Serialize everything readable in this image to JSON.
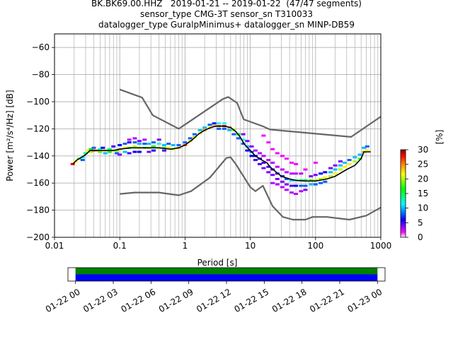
{
  "title_lines": [
    "BK.BK69.00.HHZ   2019-01-21 -- 2019-01-22  (47/47 segments)",
    "sensor_type CMG-3T sensor_sn T310033",
    "datalogger_type GuralpMinimus+ datalogger_sn MINP-DB59"
  ],
  "chart_data": [
    {
      "type": "heatmap",
      "subtype": "probabilistic_power_spectral_density",
      "xlabel": "Period [s]",
      "ylabel": "Power [m²/s⁴/Hz] [dB]",
      "x_scale": "log",
      "xlim": [
        0.01,
        1000
      ],
      "ylim": [
        -200,
        -50
      ],
      "x_ticks": [
        0.01,
        0.1,
        1,
        10,
        100,
        1000
      ],
      "x_tick_labels": [
        "0.01",
        "0.1",
        "1",
        "10",
        "100",
        "1000"
      ],
      "y_ticks": [
        -200,
        -180,
        -160,
        -140,
        -120,
        -100,
        -80,
        -60
      ],
      "y_tick_labels": [
        "−200",
        "−180",
        "−160",
        "−140",
        "−120",
        "−100",
        "−80",
        "−60"
      ],
      "grid": true,
      "colorbar": {
        "label": "[%]",
        "range": [
          0,
          30
        ],
        "ticks": [
          0,
          5,
          10,
          15,
          20,
          25,
          30
        ],
        "tick_labels": [
          "0",
          "5",
          "10",
          "15",
          "20",
          "25",
          "30"
        ],
        "colors": [
          "#ffffff",
          "#ff00ff",
          "#0000ff",
          "#00ffff",
          "#00ff00",
          "#ffff00",
          "#ff8000",
          "#ff0000",
          "#800000"
        ]
      },
      "series": [
        {
          "name": "",
          "color": "#000000",
          "points": [
            [
              0.019,
              -146
            ],
            [
              0.022,
              -143
            ],
            [
              0.026,
              -141
            ],
            [
              0.03,
              -139
            ],
            [
              0.035,
              -136
            ],
            [
              0.05,
              -136
            ],
            [
              0.08,
              -136
            ],
            [
              0.1,
              -135
            ],
            [
              0.15,
              -134
            ],
            [
              0.25,
              -134
            ],
            [
              0.4,
              -134
            ],
            [
              0.6,
              -135
            ],
            [
              0.8,
              -134
            ],
            [
              1.0,
              -132
            ],
            [
              1.3,
              -128
            ],
            [
              1.6,
              -124
            ],
            [
              2.0,
              -121
            ],
            [
              2.5,
              -119
            ],
            [
              3.0,
              -118
            ],
            [
              4.0,
              -118
            ],
            [
              5.0,
              -119
            ],
            [
              6.0,
              -122
            ],
            [
              7.0,
              -126
            ],
            [
              8.0,
              -131
            ],
            [
              10,
              -136
            ],
            [
              12,
              -140
            ],
            [
              15,
              -143
            ],
            [
              18,
              -145
            ],
            [
              20,
              -148
            ],
            [
              25,
              -152
            ],
            [
              30,
              -155
            ],
            [
              40,
              -157
            ],
            [
              50,
              -158
            ],
            [
              70,
              -158.5
            ],
            [
              100,
              -158.5
            ],
            [
              150,
              -157
            ],
            [
              200,
              -155
            ],
            [
              300,
              -150
            ],
            [
              400,
              -147
            ],
            [
              500,
              -142
            ],
            [
              550,
              -137
            ],
            [
              700,
              -137
            ]
          ]
        },
        {
          "name": "",
          "color": "#666666",
          "points": [
            [
              0.1,
              -91
            ],
            [
              0.22,
              -97
            ],
            [
              0.32,
              -110
            ],
            [
              0.8,
              -120
            ],
            [
              3.8,
              -98
            ],
            [
              4.6,
              -96.5
            ],
            [
              6.3,
              -101
            ],
            [
              7.9,
              -113
            ],
            [
              15.4,
              -118
            ],
            [
              20,
              -120.5
            ],
            [
              350,
              -126
            ],
            [
              1000,
              -111
            ]
          ]
        },
        {
          "name": "",
          "color": "#666666",
          "points": [
            [
              0.1,
              -168
            ],
            [
              0.17,
              -167
            ],
            [
              0.4,
              -167
            ],
            [
              0.8,
              -169
            ],
            [
              1.24,
              -166
            ],
            [
              2.4,
              -156
            ],
            [
              4.3,
              -141.5
            ],
            [
              5,
              -141
            ],
            [
              6,
              -146
            ],
            [
              10,
              -163
            ],
            [
              12,
              -166
            ],
            [
              15.6,
              -162
            ],
            [
              21.9,
              -177
            ],
            [
              31.6,
              -185
            ],
            [
              45,
              -187
            ],
            [
              70,
              -187
            ],
            [
              90,
              -185
            ],
            [
              150,
              -185
            ],
            [
              330,
              -187
            ],
            [
              600,
              -184
            ],
            [
              1000,
              -178
            ]
          ]
        }
      ],
      "pdf_cells": [
        [
          0.019,
          -146,
          28
        ],
        [
          0.021,
          -144,
          22
        ],
        [
          0.024,
          -142,
          18
        ],
        [
          0.027,
          -141,
          12
        ],
        [
          0.027,
          -143,
          8
        ],
        [
          0.03,
          -138,
          14
        ],
        [
          0.033,
          -136,
          22
        ],
        [
          0.036,
          -135,
          16
        ],
        [
          0.036,
          -137,
          20
        ],
        [
          0.04,
          -134,
          8
        ],
        [
          0.04,
          -136,
          26
        ],
        [
          0.045,
          -136,
          24
        ],
        [
          0.05,
          -135,
          12
        ],
        [
          0.05,
          -137,
          18
        ],
        [
          0.055,
          -134,
          6
        ],
        [
          0.055,
          -136,
          22
        ],
        [
          0.06,
          -138,
          10
        ],
        [
          0.065,
          -136,
          20
        ],
        [
          0.07,
          -135,
          14
        ],
        [
          0.07,
          -137,
          16
        ],
        [
          0.08,
          -136,
          22
        ],
        [
          0.08,
          -133,
          5
        ],
        [
          0.09,
          -136,
          18
        ],
        [
          0.09,
          -138,
          8
        ],
        [
          0.1,
          -135,
          20
        ],
        [
          0.1,
          -132,
          6
        ],
        [
          0.1,
          -139,
          4
        ],
        [
          0.12,
          -134,
          22
        ],
        [
          0.12,
          -131,
          8
        ],
        [
          0.12,
          -137,
          10
        ],
        [
          0.14,
          -134,
          18
        ],
        [
          0.14,
          -130,
          6
        ],
        [
          0.14,
          -128,
          3
        ],
        [
          0.14,
          -138,
          5
        ],
        [
          0.17,
          -133,
          20
        ],
        [
          0.17,
          -130,
          8
        ],
        [
          0.17,
          -127,
          3
        ],
        [
          0.17,
          -137,
          6
        ],
        [
          0.2,
          -134,
          22
        ],
        [
          0.2,
          -131,
          10
        ],
        [
          0.2,
          -129,
          4
        ],
        [
          0.2,
          -137,
          6
        ],
        [
          0.24,
          -134,
          18
        ],
        [
          0.24,
          -131,
          8
        ],
        [
          0.24,
          -128,
          3
        ],
        [
          0.28,
          -134,
          20
        ],
        [
          0.28,
          -131,
          10
        ],
        [
          0.28,
          -137,
          4
        ],
        [
          0.33,
          -133,
          16
        ],
        [
          0.33,
          -130,
          8
        ],
        [
          0.33,
          -136,
          6
        ],
        [
          0.4,
          -134,
          22
        ],
        [
          0.4,
          -131,
          12
        ],
        [
          0.4,
          -128,
          4
        ],
        [
          0.48,
          -134,
          18
        ],
        [
          0.48,
          -132,
          10
        ],
        [
          0.48,
          -136,
          5
        ],
        [
          0.56,
          -134,
          22
        ],
        [
          0.56,
          -131,
          8
        ],
        [
          0.66,
          -135,
          20
        ],
        [
          0.66,
          -132,
          10
        ],
        [
          0.8,
          -134,
          24
        ],
        [
          0.8,
          -132,
          8
        ],
        [
          1.0,
          -132,
          26
        ],
        [
          1.0,
          -130,
          8
        ],
        [
          1.2,
          -129,
          22
        ],
        [
          1.2,
          -127,
          8
        ],
        [
          1.4,
          -126,
          20
        ],
        [
          1.4,
          -124,
          8
        ],
        [
          1.7,
          -123,
          22
        ],
        [
          1.7,
          -121,
          10
        ],
        [
          2.0,
          -121,
          24
        ],
        [
          2.0,
          -119,
          10
        ],
        [
          2.4,
          -119,
          22
        ],
        [
          2.4,
          -117,
          8
        ],
        [
          2.8,
          -118,
          24
        ],
        [
          2.8,
          -116,
          6
        ],
        [
          3.3,
          -118,
          26
        ],
        [
          3.3,
          -116,
          12
        ],
        [
          3.3,
          -120,
          8
        ],
        [
          4.0,
          -118,
          28
        ],
        [
          4.0,
          -116,
          12
        ],
        [
          4.0,
          -120,
          8
        ],
        [
          4.8,
          -119,
          24
        ],
        [
          4.8,
          -121,
          10
        ],
        [
          5.6,
          -121,
          20
        ],
        [
          5.6,
          -124,
          8
        ],
        [
          6.6,
          -124,
          16
        ],
        [
          6.6,
          -127,
          8
        ],
        [
          7.8,
          -128,
          12
        ],
        [
          7.8,
          -131,
          8
        ],
        [
          7.8,
          -124,
          4
        ],
        [
          9.0,
          -133,
          10
        ],
        [
          9.0,
          -136,
          6
        ],
        [
          9.0,
          -129,
          4
        ],
        [
          10.5,
          -137,
          8
        ],
        [
          10.5,
          -140,
          6
        ],
        [
          10.5,
          -133,
          4
        ],
        [
          12,
          -140,
          6
        ],
        [
          12,
          -143,
          5
        ],
        [
          12,
          -136,
          3
        ],
        [
          14,
          -142,
          6
        ],
        [
          14,
          -146,
          5
        ],
        [
          14,
          -138,
          3
        ],
        [
          16,
          -145,
          5
        ],
        [
          16,
          -149,
          4
        ],
        [
          16,
          -140,
          3
        ],
        [
          16,
          -125,
          2
        ],
        [
          19,
          -148,
          5
        ],
        [
          19,
          -152,
          4
        ],
        [
          19,
          -143,
          3
        ],
        [
          19,
          -130,
          2
        ],
        [
          22,
          -150,
          5
        ],
        [
          22,
          -154,
          4
        ],
        [
          22,
          -160,
          3
        ],
        [
          22,
          -145,
          3
        ],
        [
          22,
          -135,
          2
        ],
        [
          26,
          -153,
          5
        ],
        [
          26,
          -157,
          4
        ],
        [
          26,
          -161,
          3
        ],
        [
          26,
          -148,
          3
        ],
        [
          26,
          -138,
          2
        ],
        [
          31,
          -155,
          6
        ],
        [
          31,
          -159,
          4
        ],
        [
          31,
          -163,
          3
        ],
        [
          31,
          -150,
          3
        ],
        [
          31,
          -140,
          2
        ],
        [
          36,
          -157,
          8
        ],
        [
          36,
          -161,
          4
        ],
        [
          36,
          -165,
          3
        ],
        [
          36,
          -152,
          3
        ],
        [
          36,
          -142,
          2
        ],
        [
          43,
          -158,
          10
        ],
        [
          43,
          -162,
          5
        ],
        [
          43,
          -167,
          3
        ],
        [
          43,
          -153,
          3
        ],
        [
          43,
          -145,
          2
        ],
        [
          50,
          -158,
          12
        ],
        [
          50,
          -162,
          6
        ],
        [
          50,
          -168,
          3
        ],
        [
          50,
          -153,
          3
        ],
        [
          50,
          -146,
          2
        ],
        [
          60,
          -158,
          14
        ],
        [
          60,
          -162,
          8
        ],
        [
          60,
          -166,
          3
        ],
        [
          60,
          -153,
          3
        ],
        [
          70,
          -158,
          16
        ],
        [
          70,
          -162,
          8
        ],
        [
          70,
          -165,
          4
        ],
        [
          70,
          -150,
          2
        ],
        [
          85,
          -158,
          18
        ],
        [
          85,
          -161,
          10
        ],
        [
          85,
          -155,
          4
        ],
        [
          100,
          -158,
          20
        ],
        [
          100,
          -161,
          8
        ],
        [
          100,
          -154,
          4
        ],
        [
          100,
          -145,
          2
        ],
        [
          120,
          -157,
          20
        ],
        [
          120,
          -160,
          8
        ],
        [
          120,
          -153,
          6
        ],
        [
          140,
          -156,
          22
        ],
        [
          140,
          -159,
          8
        ],
        [
          140,
          -152,
          6
        ],
        [
          170,
          -155,
          20
        ],
        [
          170,
          -152,
          10
        ],
        [
          170,
          -149,
          4
        ],
        [
          200,
          -153,
          22
        ],
        [
          200,
          -150,
          10
        ],
        [
          200,
          -147,
          4
        ],
        [
          240,
          -150,
          20
        ],
        [
          240,
          -147,
          10
        ],
        [
          240,
          -144,
          4
        ],
        [
          280,
          -148,
          22
        ],
        [
          280,
          -145,
          10
        ],
        [
          330,
          -146,
          22
        ],
        [
          330,
          -143,
          8
        ],
        [
          400,
          -144,
          20
        ],
        [
          400,
          -141,
          10
        ],
        [
          480,
          -142,
          18
        ],
        [
          480,
          -139,
          10
        ],
        [
          550,
          -137,
          24
        ],
        [
          550,
          -134,
          10
        ],
        [
          620,
          -136,
          22
        ],
        [
          620,
          -133,
          8
        ]
      ]
    },
    {
      "type": "bar",
      "subtype": "data_coverage_timeline",
      "x_ticks": [
        "01-22 00",
        "01-22 03",
        "01-22 06",
        "01-22 09",
        "01-22 12",
        "01-22 15",
        "01-22 18",
        "01-22 21",
        "01-23 00"
      ],
      "xlim_hours": [
        -0.6,
        24.6
      ],
      "series": [
        {
          "name": "",
          "color": "#008000",
          "start_hour": 0,
          "end_hour": 24
        },
        {
          "name": "",
          "color": "#0000ff",
          "start_hour": 0,
          "end_hour": 24
        }
      ]
    }
  ]
}
